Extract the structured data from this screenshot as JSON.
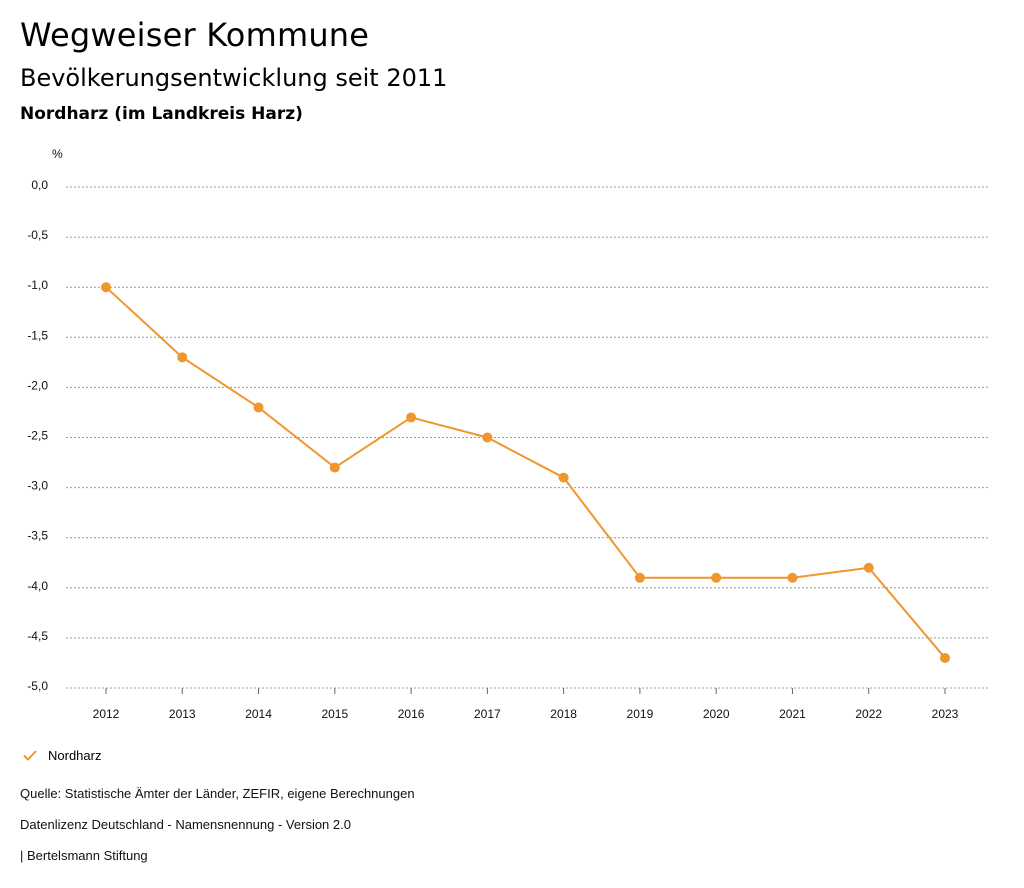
{
  "header": {
    "title": "Wegweiser Kommune",
    "subtitle": "Bevölkerungsentwicklung seit 2011",
    "region": "Nordharz (im Landkreis Harz)"
  },
  "chart_data": {
    "type": "line",
    "title": "Bevölkerungsentwicklung seit 2011",
    "ylabel": "%",
    "xlabel": "",
    "ylim": [
      -5.0,
      0.0
    ],
    "ytick_values": [
      0.0,
      -0.5,
      -1.0,
      -1.5,
      -2.0,
      -2.5,
      -3.0,
      -3.5,
      -4.0,
      -4.5,
      -5.0
    ],
    "ytick_labels": [
      "0,0",
      "-0,5",
      "-1,0",
      "-1,5",
      "-2,0",
      "-2,5",
      "-3,0",
      "-3,5",
      "-4,0",
      "-4,5",
      "-5,0"
    ],
    "categories": [
      "2012",
      "2013",
      "2014",
      "2015",
      "2016",
      "2017",
      "2018",
      "2019",
      "2020",
      "2021",
      "2022",
      "2023"
    ],
    "series": [
      {
        "name": "Nordharz",
        "color": "#f0962e",
        "values": [
          -1.0,
          -1.7,
          -2.2,
          -2.8,
          -2.3,
          -2.5,
          -2.9,
          -3.9,
          -3.9,
          -3.9,
          -3.8,
          -4.7
        ]
      }
    ],
    "grid": true,
    "legend": "bottom-left"
  },
  "legend": {
    "label": "Nordharz",
    "icon": "check-icon",
    "color": "#f0962e"
  },
  "footer": {
    "source": "Quelle: Statistische Ämter der Länder, ZEFIR, eigene Berechnungen",
    "license": "Datenlizenz Deutschland - Namensnennung - Version 2.0",
    "publisher": "| Bertelsmann Stiftung"
  }
}
